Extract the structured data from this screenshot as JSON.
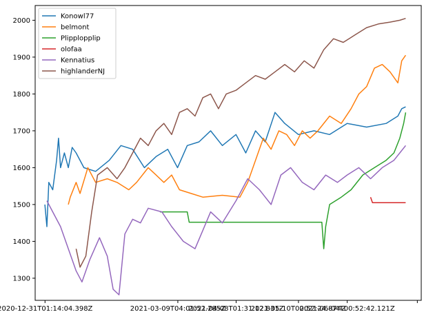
{
  "chart_data": {
    "type": "line",
    "title": "",
    "xlabel": "",
    "ylabel": "",
    "grid": false,
    "legend_position": "top-left",
    "ylim": [
      1240,
      2040
    ],
    "yticks": [
      1300,
      1400,
      1500,
      1600,
      1700,
      1800,
      1900,
      2000
    ],
    "xlim": [
      "2020-12-26T00:00:00Z",
      "2021-07-12T00:00:00Z"
    ],
    "xticks": [
      "2020-12-31T01:14:04.398Z",
      "2021-03-09T04:01:52.285Z",
      "2021-04-08T01:31:12.831Z",
      "2021-05-10T00:52:24.874Z",
      "2021-06-04T00:52:42.121Z",
      "2021-07-10T00:00:00Z"
    ],
    "xtick_labels": [
      "2020-12-31T01:14:04.398Z",
      "2021-03-09T04:01:52.285Z",
      "2021-04-08T01:31:12.831Z",
      "2021-05-10T00:52:24.874Z",
      "2021-06-04T00:52:42.121Z",
      ""
    ],
    "series": [
      {
        "name": "Konowl77",
        "color": "#1f77b4",
        "points": [
          [
            "2020-12-31",
            1500
          ],
          [
            "2021-01-01",
            1440
          ],
          [
            "2021-01-02",
            1560
          ],
          [
            "2021-01-04",
            1540
          ],
          [
            "2021-01-06",
            1620
          ],
          [
            "2021-01-07",
            1680
          ],
          [
            "2021-01-08",
            1600
          ],
          [
            "2021-01-10",
            1640
          ],
          [
            "2021-01-12",
            1600
          ],
          [
            "2021-01-14",
            1655
          ],
          [
            "2021-01-16",
            1640
          ],
          [
            "2021-01-20",
            1600
          ],
          [
            "2021-01-26",
            1590
          ],
          [
            "2021-02-02",
            1620
          ],
          [
            "2021-02-08",
            1660
          ],
          [
            "2021-02-14",
            1650
          ],
          [
            "2021-02-20",
            1600
          ],
          [
            "2021-02-26",
            1630
          ],
          [
            "2021-03-04",
            1650
          ],
          [
            "2021-03-09",
            1600
          ],
          [
            "2021-03-14",
            1660
          ],
          [
            "2021-03-20",
            1670
          ],
          [
            "2021-03-26",
            1700
          ],
          [
            "2021-04-01",
            1660
          ],
          [
            "2021-04-08",
            1690
          ],
          [
            "2021-04-13",
            1640
          ],
          [
            "2021-04-18",
            1700
          ],
          [
            "2021-04-23",
            1670
          ],
          [
            "2021-04-28",
            1750
          ],
          [
            "2021-05-03",
            1720
          ],
          [
            "2021-05-10",
            1690
          ],
          [
            "2021-05-18",
            1700
          ],
          [
            "2021-05-26",
            1690
          ],
          [
            "2021-06-04",
            1720
          ],
          [
            "2021-06-14",
            1710
          ],
          [
            "2021-06-24",
            1720
          ],
          [
            "2021-06-30",
            1740
          ],
          [
            "2021-07-02",
            1760
          ],
          [
            "2021-07-04",
            1765
          ]
        ]
      },
      {
        "name": "belmont",
        "color": "#ff7f0e",
        "points": [
          [
            "2021-01-12",
            1500
          ],
          [
            "2021-01-13",
            1520
          ],
          [
            "2021-01-16",
            1560
          ],
          [
            "2021-01-18",
            1530
          ],
          [
            "2021-01-22",
            1600
          ],
          [
            "2021-01-26",
            1560
          ],
          [
            "2021-02-01",
            1570
          ],
          [
            "2021-02-06",
            1560
          ],
          [
            "2021-02-12",
            1540
          ],
          [
            "2021-02-16",
            1560
          ],
          [
            "2021-02-22",
            1600
          ],
          [
            "2021-02-26",
            1580
          ],
          [
            "2021-03-02",
            1560
          ],
          [
            "2021-03-06",
            1580
          ],
          [
            "2021-03-10",
            1540
          ],
          [
            "2021-03-16",
            1530
          ],
          [
            "2021-03-22",
            1520
          ],
          [
            "2021-04-01",
            1525
          ],
          [
            "2021-04-10",
            1520
          ],
          [
            "2021-04-14",
            1560
          ],
          [
            "2021-04-18",
            1620
          ],
          [
            "2021-04-22",
            1680
          ],
          [
            "2021-04-26",
            1650
          ],
          [
            "2021-04-30",
            1700
          ],
          [
            "2021-05-04",
            1690
          ],
          [
            "2021-05-08",
            1660
          ],
          [
            "2021-05-12",
            1700
          ],
          [
            "2021-05-16",
            1680
          ],
          [
            "2021-05-20",
            1700
          ],
          [
            "2021-05-26",
            1740
          ],
          [
            "2021-06-01",
            1720
          ],
          [
            "2021-06-06",
            1760
          ],
          [
            "2021-06-10",
            1800
          ],
          [
            "2021-06-14",
            1820
          ],
          [
            "2021-06-18",
            1870
          ],
          [
            "2021-06-22",
            1880
          ],
          [
            "2021-06-26",
            1860
          ],
          [
            "2021-06-30",
            1830
          ],
          [
            "2021-07-02",
            1890
          ],
          [
            "2021-07-04",
            1905
          ]
        ]
      },
      {
        "name": "Plipplopplip",
        "color": "#2ca02c",
        "points": [
          [
            "2021-02-28",
            1480
          ],
          [
            "2021-03-14",
            1480
          ],
          [
            "2021-03-15",
            1452
          ],
          [
            "2021-05-22",
            1452
          ],
          [
            "2021-05-23",
            1380
          ],
          [
            "2021-05-24",
            1440
          ],
          [
            "2021-05-26",
            1500
          ],
          [
            "2021-06-01",
            1520
          ],
          [
            "2021-06-06",
            1540
          ],
          [
            "2021-06-12",
            1580
          ],
          [
            "2021-06-18",
            1600
          ],
          [
            "2021-06-24",
            1620
          ],
          [
            "2021-06-28",
            1640
          ],
          [
            "2021-07-01",
            1680
          ],
          [
            "2021-07-03",
            1720
          ],
          [
            "2021-07-04",
            1750
          ]
        ]
      },
      {
        "name": "olofaa",
        "color": "#d62728",
        "points": [
          [
            "2021-06-16",
            1520
          ],
          [
            "2021-06-17",
            1505
          ],
          [
            "2021-07-04",
            1505
          ]
        ]
      },
      {
        "name": "Kennatius",
        "color": "#9467bd",
        "points": [
          [
            "2021-01-01",
            1510
          ],
          [
            "2021-01-04",
            1480
          ],
          [
            "2021-01-08",
            1440
          ],
          [
            "2021-01-12",
            1380
          ],
          [
            "2021-01-16",
            1320
          ],
          [
            "2021-01-19",
            1290
          ],
          [
            "2021-01-23",
            1350
          ],
          [
            "2021-01-28",
            1410
          ],
          [
            "2021-02-01",
            1360
          ],
          [
            "2021-02-04",
            1270
          ],
          [
            "2021-02-07",
            1255
          ],
          [
            "2021-02-10",
            1420
          ],
          [
            "2021-02-14",
            1460
          ],
          [
            "2021-02-18",
            1450
          ],
          [
            "2021-02-22",
            1490
          ],
          [
            "2021-03-01",
            1480
          ],
          [
            "2021-03-06",
            1440
          ],
          [
            "2021-03-12",
            1400
          ],
          [
            "2021-03-18",
            1380
          ],
          [
            "2021-03-22",
            1430
          ],
          [
            "2021-03-26",
            1480
          ],
          [
            "2021-04-01",
            1450
          ],
          [
            "2021-04-08",
            1510
          ],
          [
            "2021-04-14",
            1570
          ],
          [
            "2021-04-20",
            1540
          ],
          [
            "2021-04-26",
            1500
          ],
          [
            "2021-05-01",
            1580
          ],
          [
            "2021-05-06",
            1600
          ],
          [
            "2021-05-12",
            1560
          ],
          [
            "2021-05-18",
            1540
          ],
          [
            "2021-05-24",
            1580
          ],
          [
            "2021-05-30",
            1560
          ],
          [
            "2021-06-04",
            1580
          ],
          [
            "2021-06-10",
            1600
          ],
          [
            "2021-06-16",
            1570
          ],
          [
            "2021-06-22",
            1600
          ],
          [
            "2021-06-28",
            1620
          ],
          [
            "2021-07-01",
            1640
          ],
          [
            "2021-07-04",
            1660
          ]
        ]
      },
      {
        "name": "highlanderNJ",
        "color": "#8c564b",
        "points": [
          [
            "2021-01-16",
            1380
          ],
          [
            "2021-01-18",
            1330
          ],
          [
            "2021-01-21",
            1360
          ],
          [
            "2021-01-24",
            1480
          ],
          [
            "2021-01-27",
            1580
          ],
          [
            "2021-02-01",
            1600
          ],
          [
            "2021-02-06",
            1570
          ],
          [
            "2021-02-10",
            1600
          ],
          [
            "2021-02-14",
            1640
          ],
          [
            "2021-02-18",
            1680
          ],
          [
            "2021-02-22",
            1660
          ],
          [
            "2021-02-26",
            1700
          ],
          [
            "2021-03-02",
            1720
          ],
          [
            "2021-03-06",
            1690
          ],
          [
            "2021-03-10",
            1750
          ],
          [
            "2021-03-14",
            1760
          ],
          [
            "2021-03-18",
            1740
          ],
          [
            "2021-03-22",
            1790
          ],
          [
            "2021-03-26",
            1800
          ],
          [
            "2021-03-30",
            1760
          ],
          [
            "2021-04-03",
            1800
          ],
          [
            "2021-04-08",
            1810
          ],
          [
            "2021-04-13",
            1830
          ],
          [
            "2021-04-18",
            1850
          ],
          [
            "2021-04-23",
            1840
          ],
          [
            "2021-04-28",
            1860
          ],
          [
            "2021-05-03",
            1880
          ],
          [
            "2021-05-08",
            1860
          ],
          [
            "2021-05-13",
            1890
          ],
          [
            "2021-05-18",
            1870
          ],
          [
            "2021-05-23",
            1920
          ],
          [
            "2021-05-28",
            1950
          ],
          [
            "2021-06-02",
            1940
          ],
          [
            "2021-06-08",
            1960
          ],
          [
            "2021-06-14",
            1980
          ],
          [
            "2021-06-20",
            1990
          ],
          [
            "2021-06-26",
            1995
          ],
          [
            "2021-07-01",
            2000
          ],
          [
            "2021-07-04",
            2005
          ]
        ]
      }
    ]
  }
}
